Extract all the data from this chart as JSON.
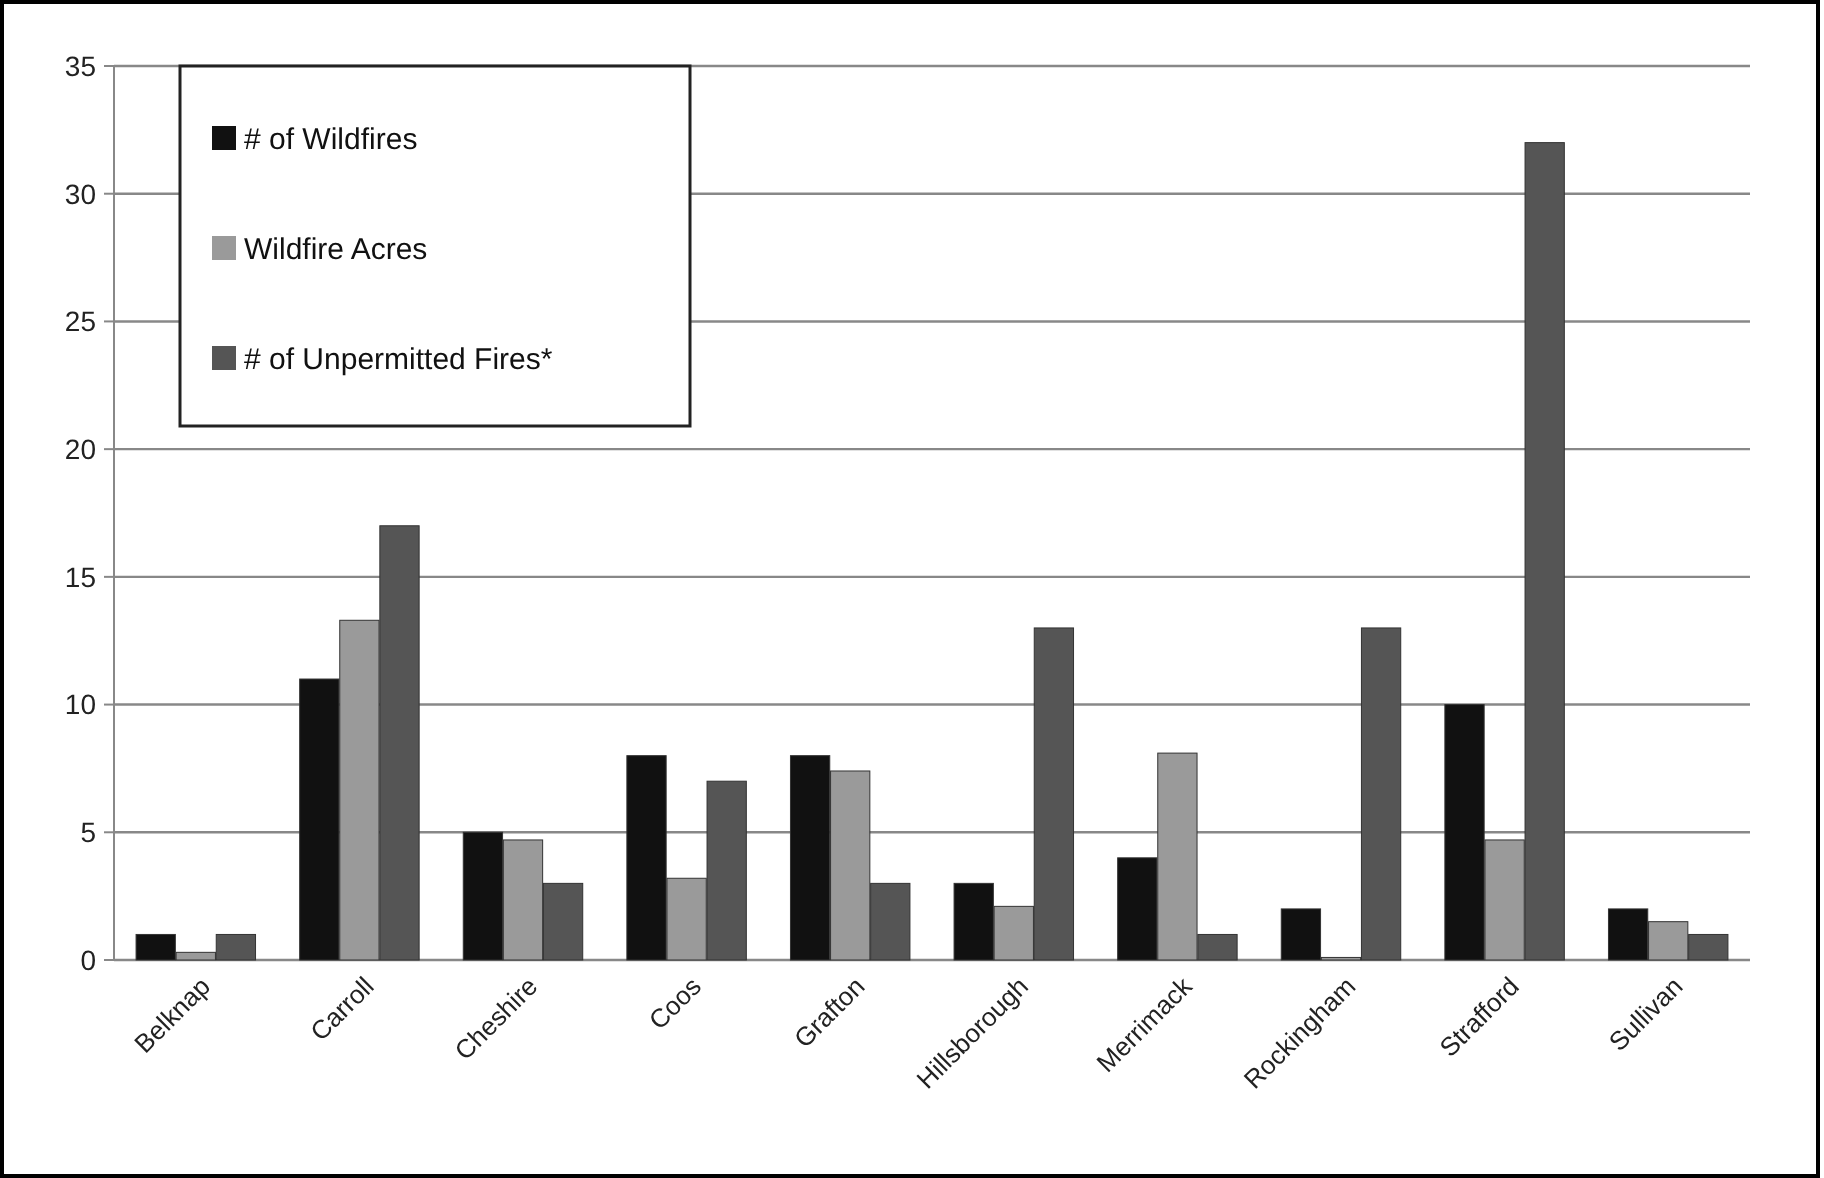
{
  "chart_data": {
    "type": "bar",
    "categories": [
      "Belknap",
      "Carroll",
      "Cheshire",
      "Coos",
      "Grafton",
      "Hillsborough",
      "Merrimack",
      "Rockingham",
      "Strafford",
      "Sullivan"
    ],
    "series": [
      {
        "name": "# of Wildfires",
        "color": "#111111",
        "values": [
          1,
          11,
          5,
          8,
          8,
          3,
          4,
          2,
          10,
          2
        ]
      },
      {
        "name": "Wildfire Acres",
        "color": "#9a9a9a",
        "values": [
          0.3,
          13.3,
          4.7,
          3.2,
          7.4,
          2.1,
          8.1,
          0.1,
          4.7,
          1.5
        ]
      },
      {
        "name": "# of Unpermitted Fires*",
        "color": "#555555",
        "values": [
          1,
          17,
          3,
          7,
          3,
          13,
          1,
          13,
          32,
          1
        ]
      }
    ],
    "ylim": [
      0,
      35
    ],
    "yticks": [
      0,
      5,
      10,
      15,
      20,
      25,
      30,
      35
    ],
    "grid": "y",
    "legend": "top left"
  }
}
